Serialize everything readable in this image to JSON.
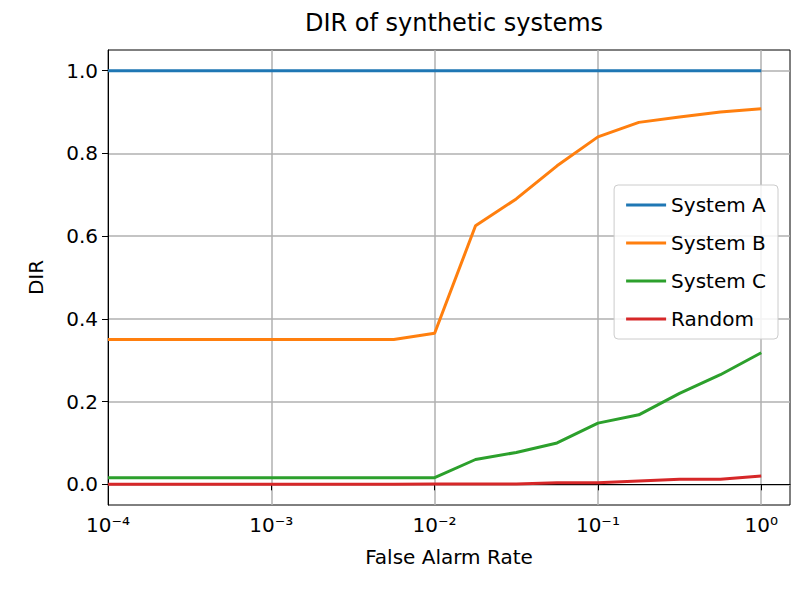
{
  "chart_data": {
    "type": "line",
    "title": "DIR of synthetic systems",
    "x_label": "False Alarm Rate",
    "y_label": "DIR",
    "log": "x",
    "grid": true,
    "legend": "right",
    "xlim": [
      0.0001,
      1.5
    ],
    "xticks": [
      {
        "value": 0.0001,
        "label": "10⁻⁴"
      },
      {
        "value": 0.001,
        "label": "10⁻³"
      },
      {
        "value": 0.01,
        "label": "10⁻²"
      },
      {
        "value": 0.1,
        "label": "10⁻¹"
      },
      {
        "value": 1,
        "label": "10⁰"
      }
    ],
    "ylim": [
      -0.05,
      1.05
    ],
    "yticks": [
      {
        "value": 0,
        "label": "0.0"
      },
      {
        "value": 0.2,
        "label": "0.2"
      },
      {
        "value": 0.4,
        "label": "0.4"
      },
      {
        "value": 0.6,
        "label": "0.6"
      },
      {
        "value": 0.8,
        "label": "0.8"
      },
      {
        "value": 1,
        "label": "1.0"
      }
    ],
    "x": [
      0.0001,
      0.000178,
      0.000316,
      0.000562,
      0.001,
      0.00178,
      0.00316,
      0.00562,
      0.01,
      0.0178,
      0.0316,
      0.0562,
      0.1,
      0.178,
      0.316,
      0.562,
      1
    ],
    "series": [
      {
        "name": "System A",
        "color": "#1f77b4",
        "values": [
          1,
          1,
          1,
          1,
          1,
          1,
          1,
          1,
          1,
          1,
          1,
          1,
          1,
          1,
          1,
          1,
          1
        ]
      },
      {
        "name": "System B",
        "color": "#ff7f0e",
        "values": [
          0.35,
          0.35,
          0.35,
          0.35,
          0.35,
          0.35,
          0.35,
          0.35,
          0.365,
          0.625,
          0.69,
          0.77,
          0.84,
          0.875,
          0.888,
          0.9,
          0.908
        ]
      },
      {
        "name": "System C",
        "color": "#2ca02c",
        "values": [
          0.016,
          0.016,
          0.016,
          0.016,
          0.016,
          0.016,
          0.016,
          0.016,
          0.016,
          0.06,
          0.077,
          0.1,
          0.148,
          0.168,
          0.22,
          0.265,
          0.318
        ]
      },
      {
        "name": "Random",
        "color": "#d62728",
        "values": [
          0,
          0,
          0,
          0,
          0,
          0,
          0,
          0,
          0.001,
          0.001,
          0.001,
          0.004,
          0.004,
          0.008,
          0.012,
          0.012,
          0.02
        ]
      }
    ]
  }
}
